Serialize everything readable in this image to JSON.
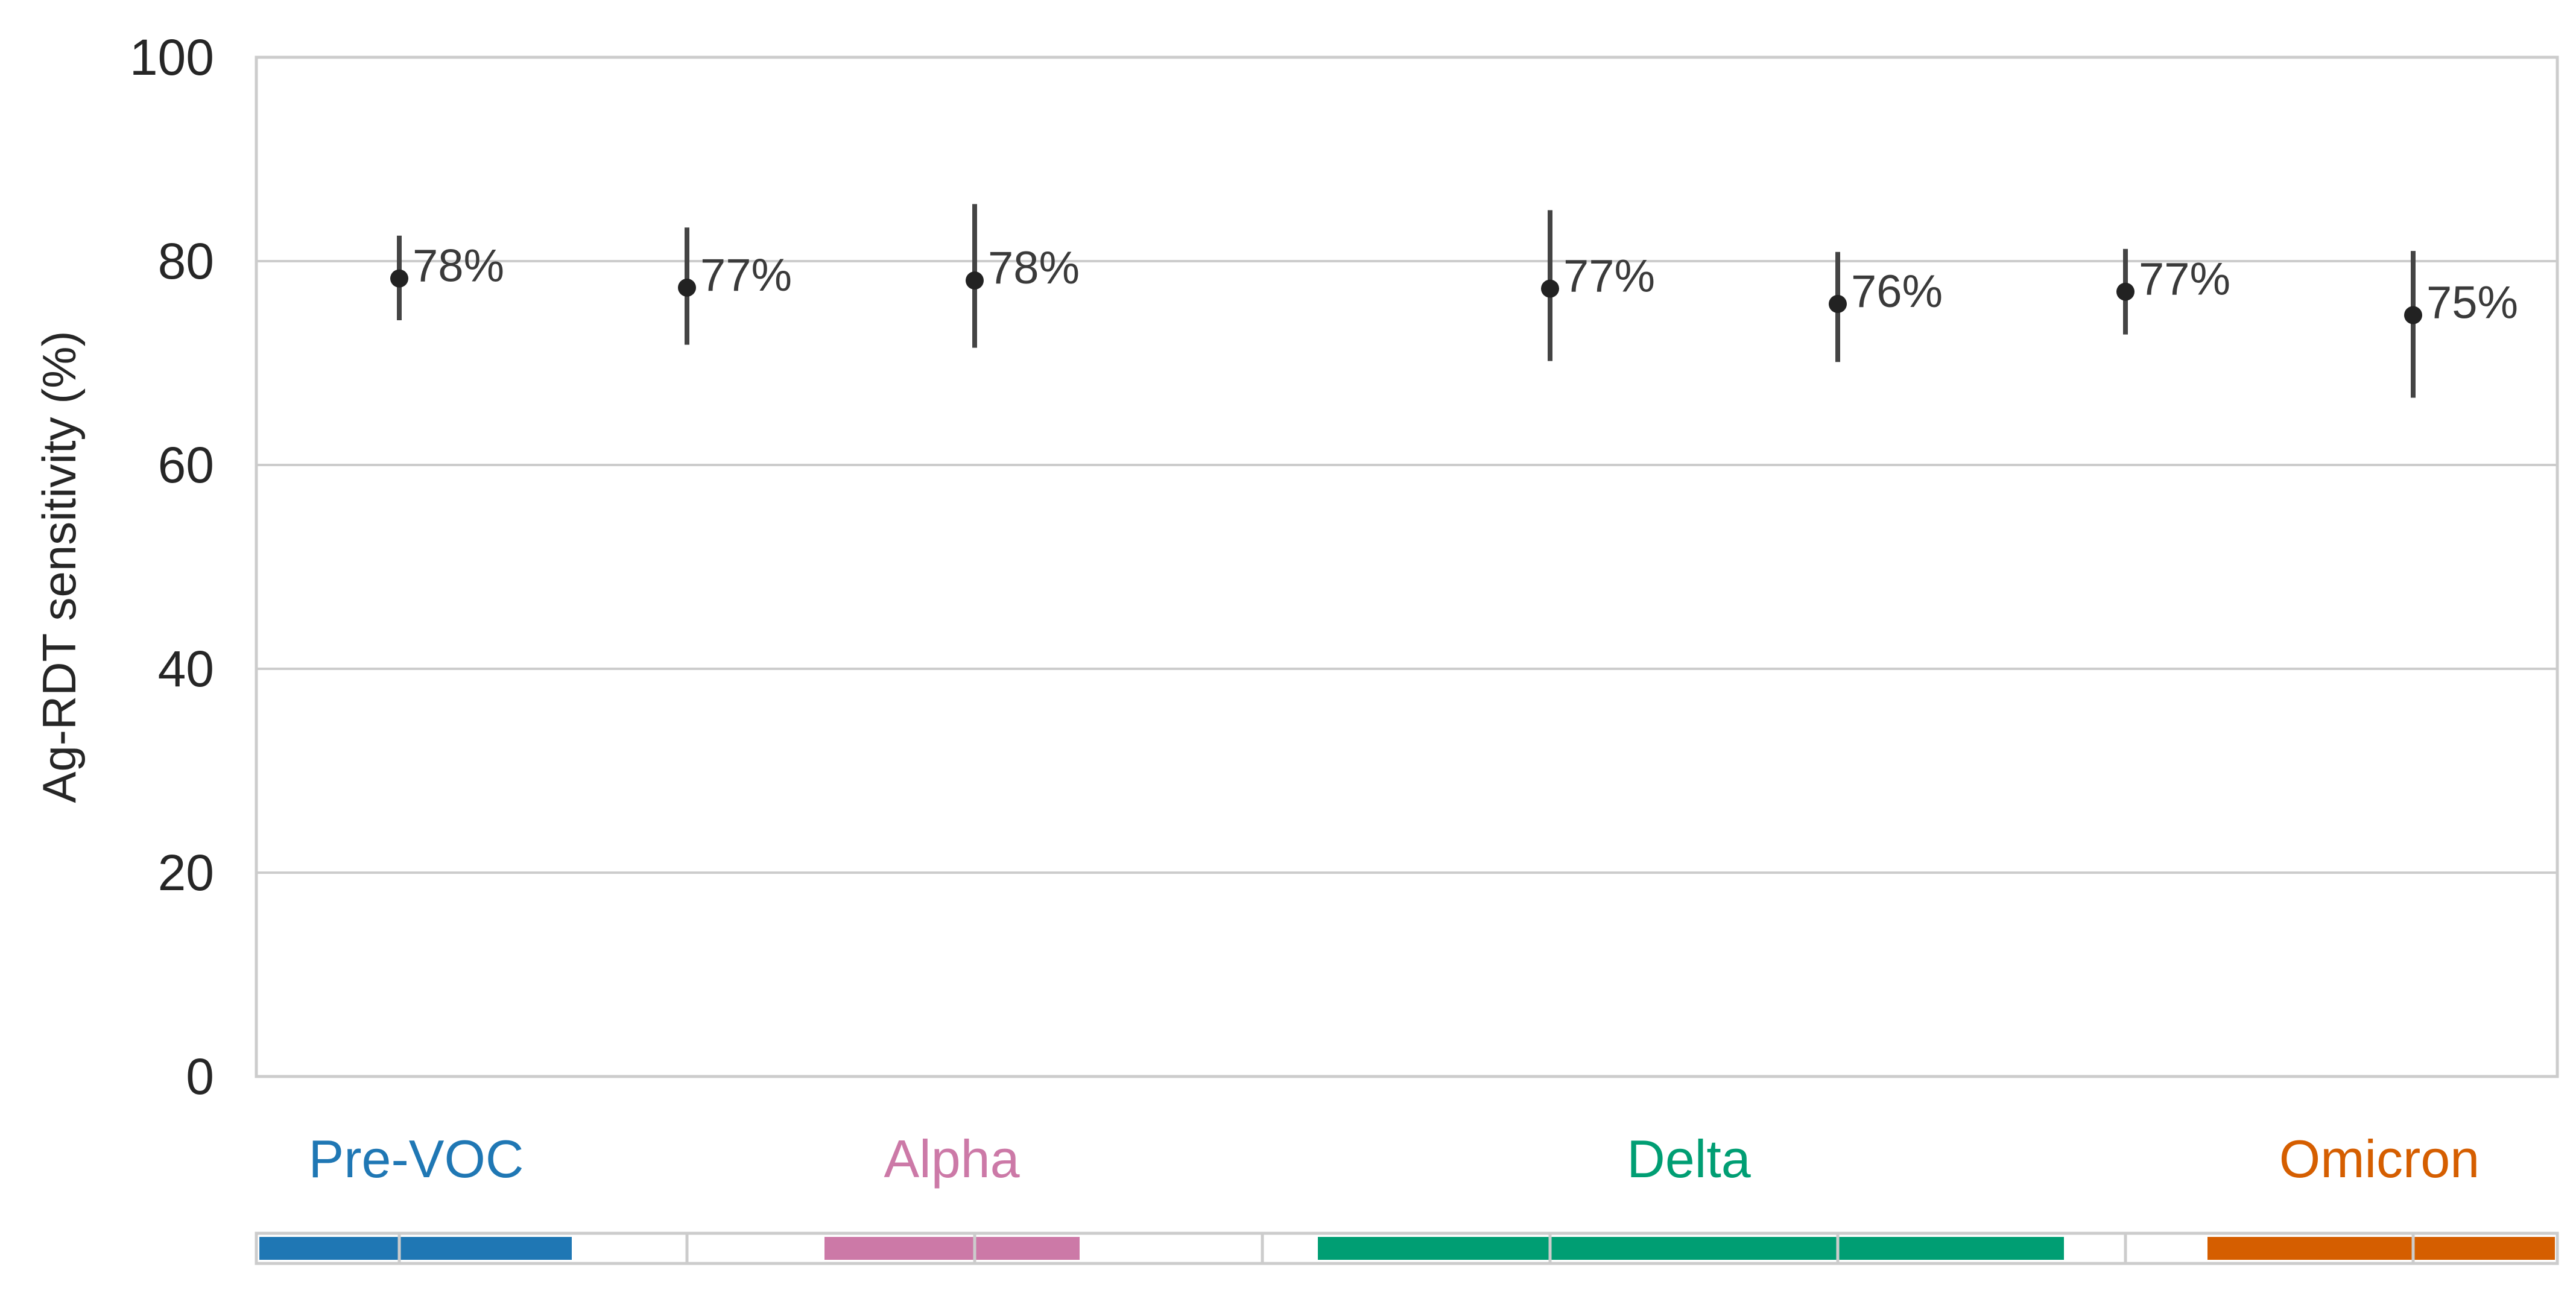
{
  "chart_data": {
    "type": "scatter",
    "ylabel": "Ag-RDT sensitivity (%)",
    "ylim": [
      0,
      100
    ],
    "yticks": [
      "0",
      "20",
      "40",
      "60",
      "80",
      "100"
    ],
    "grid": true,
    "points": [
      {
        "x": 1,
        "y": 78.3,
        "ci": [
          74.2,
          82.5
        ],
        "label": "78%"
      },
      {
        "x": 2,
        "y": 77.4,
        "ci": [
          71.8,
          83.3
        ],
        "label": "77%"
      },
      {
        "x": 3,
        "y": 78.1,
        "ci": [
          71.5,
          85.6
        ],
        "label": "78%"
      },
      {
        "x": 5,
        "y": 77.3,
        "ci": [
          70.2,
          85.0
        ],
        "label": "77%"
      },
      {
        "x": 6,
        "y": 75.8,
        "ci": [
          70.1,
          80.9
        ],
        "label": "76%"
      },
      {
        "x": 7,
        "y": 77.0,
        "ci": [
          72.8,
          81.2
        ],
        "label": "77%"
      },
      {
        "x": 8,
        "y": 74.7,
        "ci": [
          66.6,
          81.0
        ],
        "label": "75%"
      }
    ],
    "variants": [
      {
        "name": "Pre-VOC",
        "color": "#1f77b4"
      },
      {
        "name": "Alpha",
        "color": "#cc79a7"
      },
      {
        "name": "Delta",
        "color": "#009e73"
      },
      {
        "name": "Omicron",
        "color": "#d55e00"
      }
    ]
  }
}
